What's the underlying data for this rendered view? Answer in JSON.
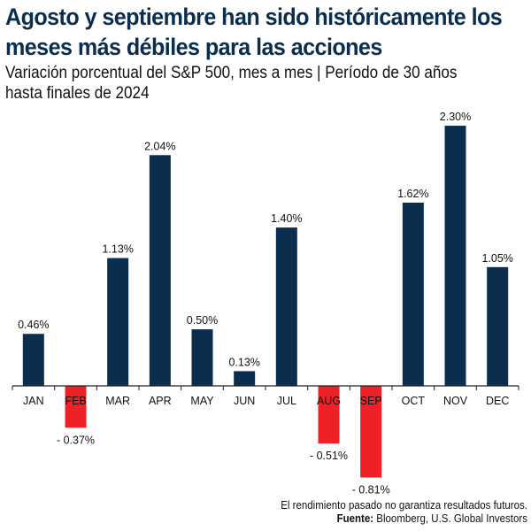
{
  "header": {
    "title_line1": "Agosto y septiembre han sido históricamente los",
    "title_line2": "meses más débiles para las acciones",
    "subtitle_line1": "Variación porcentual del S&P 500, mes a mes | Período de 30 años",
    "subtitle_line2": "hasta finales de 2024"
  },
  "footer": {
    "disclaimer": "El rendimiento pasado no garantiza resultados futuros.",
    "source_label": "Fuente:",
    "source_value": " Bloomberg, U.S. Global Investors"
  },
  "colors": {
    "positive": "#0b2d4e",
    "negative": "#ee2127",
    "axis": "#222222",
    "title": "#0b2d4e"
  },
  "chart_data": {
    "type": "bar",
    "title": "Agosto y septiembre han sido históricamente los meses más débiles para las acciones",
    "subtitle": "Variación porcentual del S&P 500, mes a mes | Período de 30 años hasta finales de 2024",
    "xlabel": "",
    "ylabel": "",
    "categories": [
      "JAN",
      "FEB",
      "MAR",
      "APR",
      "MAY",
      "JUN",
      "JUL",
      "AUG",
      "SEP",
      "OCT",
      "NOV",
      "DEC"
    ],
    "values": [
      0.46,
      -0.37,
      1.13,
      2.04,
      0.5,
      0.13,
      1.4,
      -0.51,
      -0.81,
      1.62,
      2.3,
      1.05
    ],
    "labels": [
      "0.46%",
      "- 0.37%",
      "1.13%",
      "2.04%",
      "0.50%",
      "0.13%",
      "1.40%",
      "- 0.51%",
      "- 0.81%",
      "1.62%",
      "2.30%",
      "1.05%"
    ],
    "ylim": [
      -0.9,
      2.4
    ],
    "grid": false,
    "legend": "none",
    "unit": "%"
  }
}
